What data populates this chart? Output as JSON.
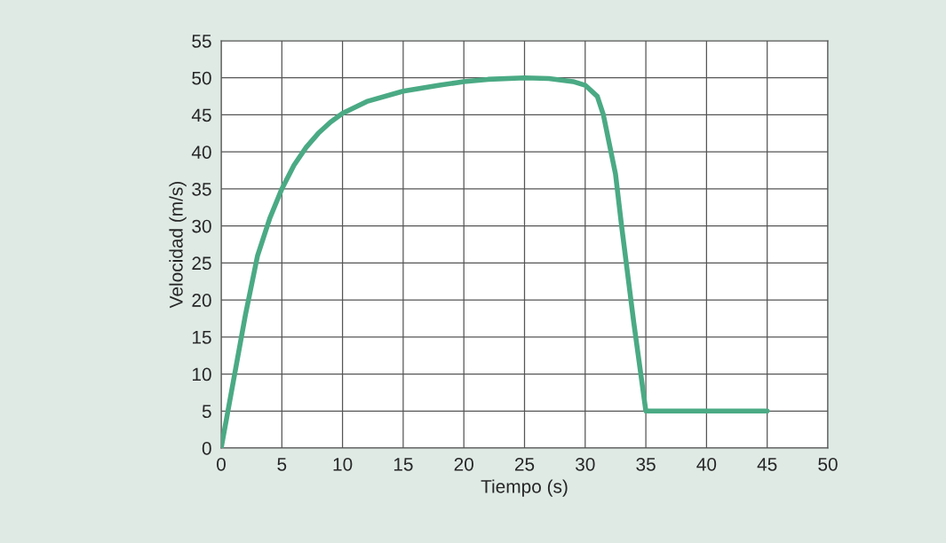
{
  "chart_data": {
    "type": "line",
    "xlabel": "Tiempo (s)",
    "ylabel": "Velocidad (m/s)",
    "xlim": [
      0,
      50
    ],
    "xticks": [
      0,
      5,
      10,
      15,
      20,
      25,
      30,
      35,
      40,
      45,
      50
    ],
    "ylim": [
      0,
      55
    ],
    "yticks": [
      0,
      5,
      10,
      15,
      20,
      25,
      30,
      35,
      40,
      45,
      50,
      55
    ],
    "grid": true,
    "marker": "none",
    "line_style": "solid",
    "series": [
      {
        "color": "#4aaa84",
        "x": [
          0,
          1,
          2,
          3,
          4,
          5,
          6,
          7,
          8,
          9,
          10,
          12,
          15,
          18,
          20,
          22,
          25,
          27,
          29,
          30,
          31,
          31.5,
          32,
          32.5,
          33,
          34,
          35,
          40,
          45
        ],
        "values": [
          0,
          9,
          18,
          26,
          31,
          35,
          38.2,
          40.6,
          42.5,
          44,
          45.2,
          46.8,
          48.2,
          49,
          49.5,
          49.8,
          50,
          49.9,
          49.5,
          49,
          47.5,
          45,
          41,
          37,
          30,
          17,
          5,
          5,
          5
        ]
      }
    ]
  }
}
